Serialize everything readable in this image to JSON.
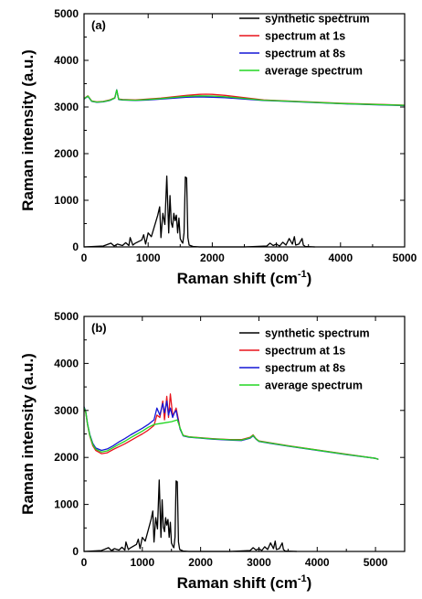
{
  "chart_data": [
    {
      "type": "line",
      "panel_label": "(a)",
      "xlabel": "Raman shift (cm",
      "xlabel_sup": "-1",
      "xlabel_tail": ")",
      "ylabel": "Raman intensity (a.u.)",
      "xlim": [
        0,
        5000
      ],
      "ylim": [
        0,
        5000
      ],
      "xticks": [
        0,
        1000,
        2000,
        3000,
        4000,
        5000
      ],
      "yticks": [
        0,
        1000,
        2000,
        3000,
        4000,
        5000
      ],
      "legend_position": "top-right",
      "series": [
        {
          "name": "synthetic spectrum",
          "color": "#000000",
          "x": [
            0,
            300,
            420,
            470,
            520,
            600,
            650,
            700,
            720,
            760,
            800,
            900,
            930,
            960,
            1000,
            1050,
            1100,
            1150,
            1180,
            1200,
            1230,
            1260,
            1290,
            1320,
            1340,
            1360,
            1380,
            1400,
            1420,
            1440,
            1460,
            1480,
            1500,
            1520,
            1540,
            1560,
            1580,
            1600,
            1620,
            1640,
            1700,
            1800,
            2000,
            2500,
            2850,
            2900,
            2950,
            3000,
            3050,
            3100,
            3150,
            3200,
            3250,
            3280,
            3300,
            3350,
            3400,
            3420,
            3450,
            3600
          ],
          "y": [
            0,
            20,
            80,
            20,
            60,
            30,
            90,
            30,
            200,
            40,
            80,
            150,
            260,
            60,
            300,
            220,
            450,
            680,
            860,
            200,
            720,
            480,
            1520,
            300,
            1100,
            520,
            420,
            720,
            560,
            680,
            300,
            620,
            180,
            120,
            80,
            300,
            1500,
            1480,
            200,
            40,
            10,
            0,
            0,
            0,
            20,
            80,
            30,
            60,
            20,
            100,
            40,
            180,
            60,
            220,
            40,
            60,
            180,
            40,
            10,
            0
          ]
        },
        {
          "name": "spectrum at 1s",
          "color": "#e8141c",
          "x": [
            0,
            60,
            120,
            200,
            300,
            400,
            480,
            510,
            540,
            600,
            800,
            1000,
            1200,
            1400,
            1600,
            1800,
            1900,
            2000,
            2200,
            2500,
            2800,
            3000,
            3500,
            4000,
            4500,
            5000
          ],
          "y": [
            3180,
            3240,
            3130,
            3110,
            3120,
            3150,
            3200,
            3360,
            3170,
            3160,
            3150,
            3170,
            3190,
            3220,
            3250,
            3270,
            3275,
            3270,
            3250,
            3200,
            3150,
            3140,
            3110,
            3080,
            3060,
            3040
          ]
        },
        {
          "name": "spectrum at 8s",
          "color": "#1416d6",
          "x": [
            0,
            60,
            120,
            200,
            300,
            400,
            480,
            510,
            540,
            600,
            800,
            1000,
            1200,
            1400,
            1600,
            1800,
            2000,
            2200,
            2500,
            2800,
            3000,
            3500,
            4000,
            4500,
            5000
          ],
          "y": [
            3170,
            3230,
            3120,
            3100,
            3110,
            3140,
            3190,
            3370,
            3160,
            3150,
            3140,
            3150,
            3170,
            3190,
            3210,
            3215,
            3210,
            3200,
            3170,
            3140,
            3130,
            3100,
            3070,
            3050,
            3030
          ]
        },
        {
          "name": "average spectrum",
          "color": "#22d622",
          "x": [
            0,
            60,
            120,
            200,
            300,
            400,
            480,
            510,
            540,
            600,
            800,
            1000,
            1200,
            1400,
            1600,
            1800,
            2000,
            2200,
            2500,
            2800,
            3000,
            3500,
            4000,
            4500,
            5000
          ],
          "y": [
            3175,
            3235,
            3125,
            3105,
            3115,
            3145,
            3195,
            3365,
            3165,
            3155,
            3145,
            3160,
            3180,
            3205,
            3230,
            3240,
            3235,
            3220,
            3185,
            3145,
            3135,
            3105,
            3075,
            3055,
            3035
          ]
        }
      ]
    },
    {
      "type": "line",
      "panel_label": "(b)",
      "xlabel": "Raman shift (cm",
      "xlabel_sup": "-1",
      "xlabel_tail": ")",
      "ylabel": "Raman intensity (a.u.)",
      "xlim": [
        0,
        5500
      ],
      "ylim": [
        0,
        5000
      ],
      "xticks": [
        0,
        1000,
        2000,
        3000,
        4000,
        5000
      ],
      "yticks": [
        0,
        1000,
        2000,
        3000,
        4000,
        5000
      ],
      "legend_position": "top-right",
      "series": [
        {
          "name": "synthetic spectrum",
          "color": "#000000",
          "x": [
            0,
            300,
            420,
            470,
            520,
            600,
            650,
            700,
            720,
            760,
            800,
            900,
            930,
            960,
            1000,
            1050,
            1100,
            1150,
            1180,
            1200,
            1230,
            1260,
            1290,
            1320,
            1340,
            1360,
            1380,
            1400,
            1420,
            1440,
            1460,
            1480,
            1500,
            1520,
            1540,
            1560,
            1580,
            1600,
            1620,
            1640,
            1700,
            1800,
            2000,
            2500,
            2850,
            2900,
            2950,
            3000,
            3050,
            3100,
            3150,
            3200,
            3250,
            3280,
            3300,
            3350,
            3400,
            3420,
            3450,
            3650
          ],
          "y": [
            0,
            20,
            80,
            20,
            60,
            30,
            90,
            30,
            200,
            40,
            80,
            150,
            260,
            60,
            300,
            220,
            450,
            680,
            860,
            200,
            720,
            480,
            1520,
            300,
            1100,
            520,
            420,
            720,
            560,
            680,
            300,
            620,
            180,
            120,
            80,
            300,
            1500,
            1480,
            200,
            40,
            10,
            0,
            0,
            0,
            20,
            80,
            30,
            60,
            20,
            100,
            40,
            180,
            60,
            220,
            40,
            60,
            180,
            40,
            10,
            0
          ]
        },
        {
          "name": "spectrum at 1s",
          "color": "#e8141c",
          "x": [
            0,
            30,
            60,
            100,
            150,
            200,
            300,
            400,
            500,
            600,
            700,
            800,
            900,
            1000,
            1100,
            1200,
            1250,
            1300,
            1350,
            1380,
            1420,
            1450,
            1480,
            1520,
            1550,
            1580,
            1620,
            1650,
            1700,
            1800,
            2000,
            2200,
            2500,
            2700,
            2850,
            2900,
            2950,
            3000,
            3200,
            3500,
            4000,
            4500,
            5000,
            5050
          ],
          "y": [
            3050,
            2950,
            2700,
            2450,
            2250,
            2150,
            2080,
            2100,
            2170,
            2230,
            2290,
            2360,
            2430,
            2500,
            2580,
            2680,
            2900,
            2850,
            3200,
            2800,
            3300,
            2850,
            3350,
            2900,
            2950,
            3050,
            2800,
            2600,
            2470,
            2440,
            2420,
            2400,
            2380,
            2380,
            2430,
            2480,
            2400,
            2350,
            2310,
            2250,
            2160,
            2070,
            1980,
            1960
          ]
        },
        {
          "name": "spectrum at 8s",
          "color": "#1416d6",
          "x": [
            0,
            30,
            60,
            100,
            150,
            200,
            300,
            400,
            500,
            600,
            700,
            800,
            900,
            1000,
            1100,
            1200,
            1250,
            1300,
            1350,
            1380,
            1420,
            1450,
            1480,
            1520,
            1550,
            1580,
            1620,
            1650,
            1700,
            1800,
            2000,
            2200,
            2500,
            2700,
            2850,
            2900,
            2950,
            3000,
            3200,
            3500,
            4000,
            4500,
            5000,
            5050
          ],
          "y": [
            3080,
            2980,
            2720,
            2480,
            2300,
            2200,
            2150,
            2180,
            2250,
            2330,
            2400,
            2480,
            2550,
            2620,
            2700,
            2800,
            3050,
            2900,
            3150,
            2950,
            3200,
            2900,
            3050,
            2850,
            2950,
            3000,
            2750,
            2600,
            2460,
            2430,
            2410,
            2390,
            2370,
            2360,
            2410,
            2460,
            2390,
            2340,
            2300,
            2240,
            2150,
            2060,
            1980,
            1960
          ]
        },
        {
          "name": "average spectrum",
          "color": "#22d622",
          "x": [
            0,
            30,
            60,
            100,
            150,
            200,
            300,
            400,
            500,
            600,
            700,
            800,
            900,
            1000,
            1100,
            1200,
            1300,
            1400,
            1500,
            1550,
            1600,
            1650,
            1700,
            1800,
            2000,
            2200,
            2500,
            2700,
            2850,
            2900,
            2950,
            3000,
            3200,
            3500,
            4000,
            4500,
            5000,
            5050
          ],
          "y": [
            3065,
            2965,
            2710,
            2465,
            2275,
            2175,
            2115,
            2140,
            2210,
            2280,
            2345,
            2420,
            2490,
            2560,
            2640,
            2700,
            2720,
            2740,
            2760,
            2780,
            2800,
            2620,
            2465,
            2435,
            2415,
            2395,
            2375,
            2370,
            2420,
            2470,
            2395,
            2345,
            2305,
            2245,
            2155,
            2065,
            1980,
            1960
          ]
        }
      ]
    }
  ]
}
